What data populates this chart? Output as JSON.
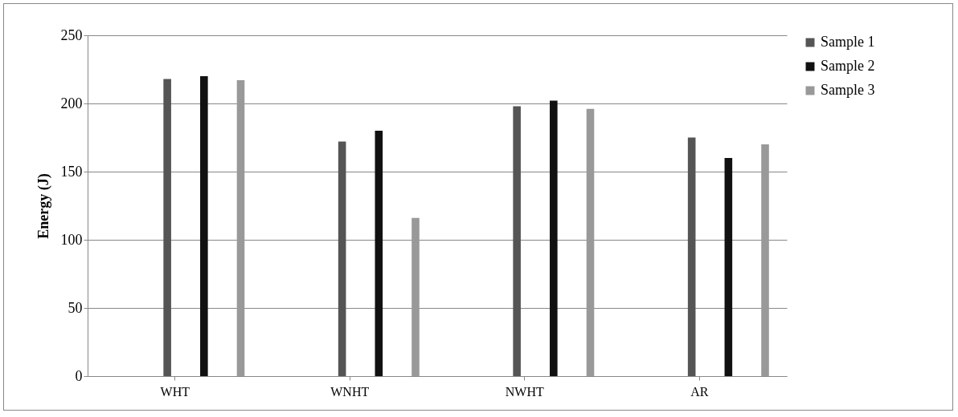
{
  "chart_data": {
    "type": "bar",
    "ylabel": "Energy (J)",
    "categories": [
      "WHT",
      "WNHT",
      "NWHT",
      "AR"
    ],
    "series": [
      {
        "name": "Sample 1",
        "color": "#555555",
        "values": [
          218,
          172,
          198,
          175
        ]
      },
      {
        "name": "Sample 2",
        "color": "#111111",
        "values": [
          220,
          180,
          202,
          160
        ]
      },
      {
        "name": "Sample 3",
        "color": "#999999",
        "values": [
          217,
          116,
          196,
          170
        ]
      }
    ],
    "ylim": [
      0,
      250
    ],
    "yticks": [
      0,
      50,
      100,
      150,
      200,
      250
    ],
    "grid": "y",
    "legend": "right"
  }
}
